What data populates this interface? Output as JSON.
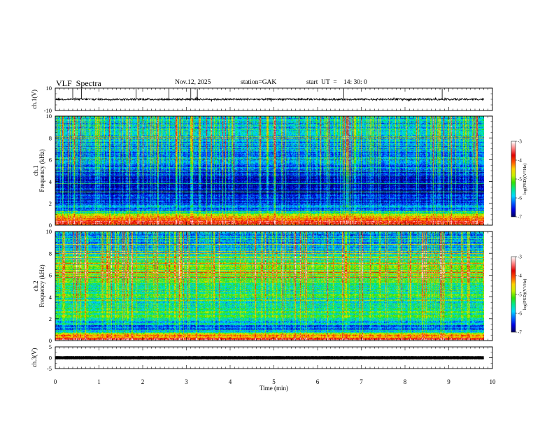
{
  "header": {
    "title": "VLF  Spectra",
    "date": "Nov.12, 2025",
    "station": "station=GAK",
    "start_label": "start  UT  =",
    "start_time": "14: 30: 0"
  },
  "chart_data": [
    {
      "type": "line",
      "panel": "ch1-waveform",
      "ylabel": "ch.1(V)",
      "ylim": [
        -10,
        10
      ],
      "yticks": [
        "10",
        "-10"
      ],
      "baseline": 0,
      "spikes_min": [
        0.4,
        0.6,
        1.85,
        2.6,
        3.1,
        3.25,
        6.6,
        8.85
      ]
    },
    {
      "type": "heatmap",
      "panel": "ch1-spectrogram",
      "ylabel": "ch.1 Frequency  (kHz)",
      "ylim": [
        0,
        10
      ],
      "yticks": [
        "0",
        "2",
        "4",
        "6",
        "8",
        "10"
      ],
      "colorbar": {
        "label": "log(PSD)(V²/Hz)",
        "range": [
          -7,
          -3
        ],
        "ticks": [
          "-3",
          "-4",
          "-5",
          "-6",
          "-7"
        ]
      },
      "profile": [
        {
          "f_khz": 0.3,
          "level": -3.9
        },
        {
          "f_khz": 0.8,
          "level": -4.6
        },
        {
          "f_khz": 1.3,
          "level": -6.1
        },
        {
          "f_khz": 2.0,
          "level": -6.4
        },
        {
          "f_khz": 3.5,
          "level": -6.9
        },
        {
          "f_khz": 5.5,
          "level": -6.2
        },
        {
          "f_khz": 8.5,
          "level": -5.9
        }
      ]
    },
    {
      "type": "heatmap",
      "panel": "ch2-spectrogram",
      "ylabel": "ch.2 Frequency  (kHz)",
      "ylim": [
        0,
        10
      ],
      "yticks": [
        "0",
        "2",
        "4",
        "6",
        "8",
        "10"
      ],
      "colorbar": {
        "label": "log(PSD)(V²/Hz)",
        "range": [
          -7,
          -3
        ],
        "ticks": [
          "-3",
          "-4",
          "-5",
          "-6",
          "-7"
        ]
      },
      "profile": [
        {
          "f_khz": 0.3,
          "level": -4.0
        },
        {
          "f_khz": 1.0,
          "level": -6.4
        },
        {
          "f_khz": 2.0,
          "level": -5.5
        },
        {
          "f_khz": 4.5,
          "level": -5.5
        },
        {
          "f_khz": 6.2,
          "level": -4.9
        },
        {
          "f_khz": 8.5,
          "level": -6.0
        }
      ]
    },
    {
      "type": "line",
      "panel": "ch3-waveform",
      "ylabel": "ch.3(V)",
      "ylim": [
        -5,
        5
      ],
      "yticks": [
        "5",
        "0",
        "-5"
      ],
      "baseline": 0
    }
  ],
  "xaxis": {
    "label": "Time  (min)",
    "range": [
      0,
      10
    ],
    "data_end": 9.8,
    "ticks": [
      "0",
      "1",
      "2",
      "3",
      "4",
      "5",
      "6",
      "7",
      "8",
      "9",
      "10"
    ]
  },
  "colors": {
    "axis": "#000000",
    "colormap": [
      "#000066",
      "#0000e0",
      "#0060ff",
      "#00d8ff",
      "#00e890",
      "#30e000",
      "#c8f000",
      "#ffd000",
      "#ff5000",
      "#e00000",
      "#ff8080",
      "#ffffff"
    ]
  }
}
